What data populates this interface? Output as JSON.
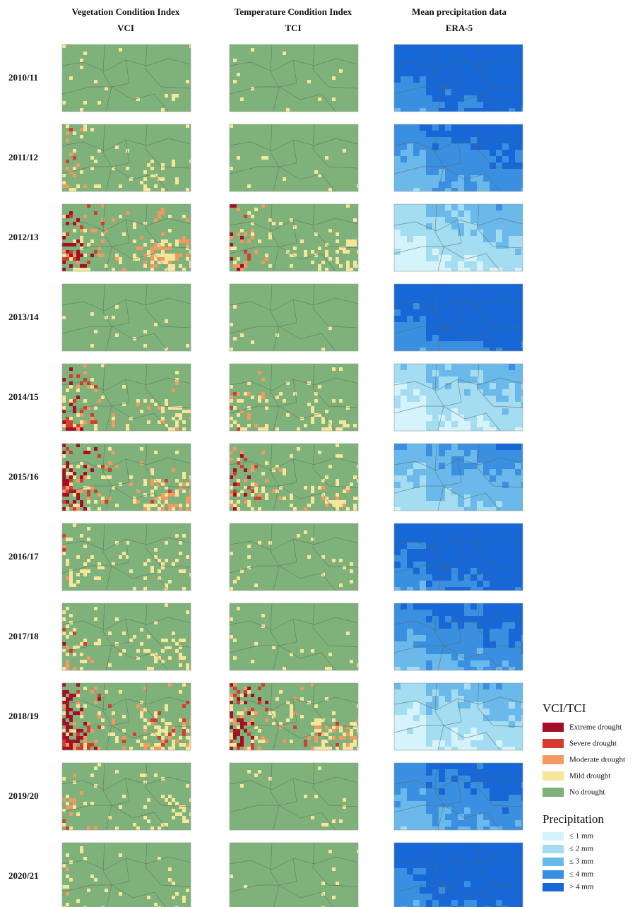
{
  "columns": [
    {
      "title": "Vegetation Condition Index",
      "subtitle": "VCI"
    },
    {
      "title": "Temperature Condition Index",
      "subtitle": "TCI"
    },
    {
      "title": "Mean precipitation data",
      "subtitle": "ERA-5"
    }
  ],
  "rows": [
    "2010/11",
    "2011/12",
    "2012/13",
    "2013/14",
    "2014/15",
    "2015/16",
    "2016/17",
    "2017/18",
    "2018/19",
    "2019/20",
    "2020/21"
  ],
  "legend": {
    "vci_tci": {
      "title": "VCI/TCI",
      "items": [
        "Extreme drought",
        "Severe drought",
        "Moderate drought",
        "Mild drought",
        "No drought"
      ]
    },
    "precipitation": {
      "title": "Precipitation",
      "items": [
        "≤ 1 mm",
        "≤ 2 mm",
        "≤ 3 mm",
        "≤ 4 mm",
        "> 4 mm"
      ]
    }
  }
}
